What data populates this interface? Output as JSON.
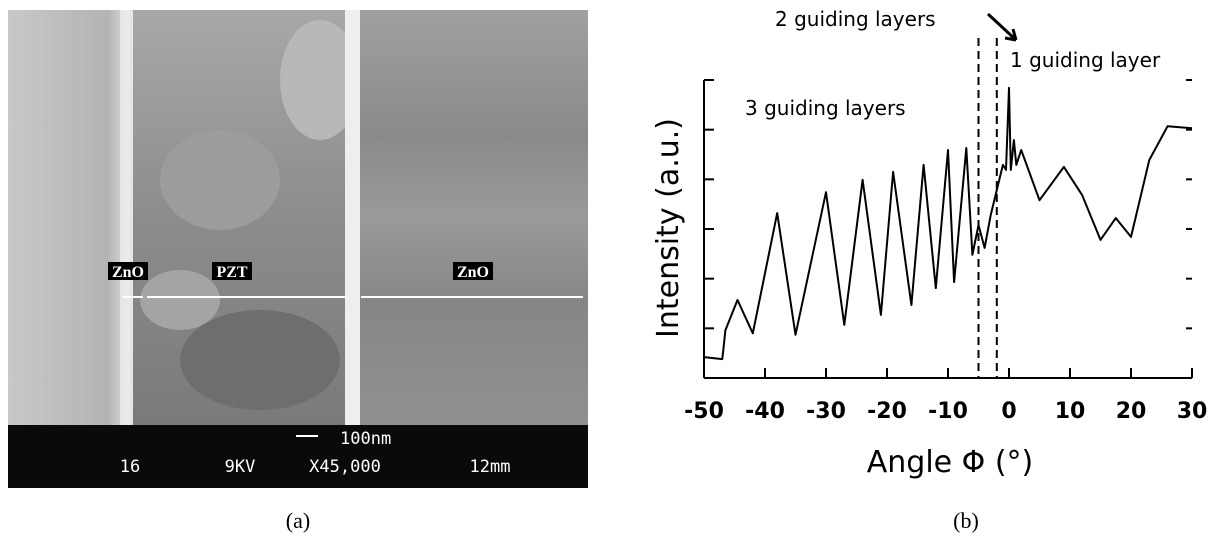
{
  "panel_a": {
    "labels": [
      "ZnO",
      "PZT",
      "ZnO"
    ],
    "scale_bar": "100nm",
    "info": [
      "16",
      "9KV",
      "X45,000",
      "12mm"
    ],
    "caption": "(a)"
  },
  "chart_data": {
    "type": "line",
    "x_label": "Angle Φ (°)",
    "y_label": "Intensity (a.u.)",
    "annotations": [
      "2 guiding layers",
      "1 guiding layer",
      "3 guiding layers"
    ],
    "xlim": [
      -50,
      30
    ],
    "xticks": [
      -50,
      -40,
      -30,
      -20,
      -10,
      0,
      10,
      20,
      30
    ],
    "ylim": [
      0,
      6
    ],
    "yticks": [
      0,
      1,
      2,
      3,
      4,
      5,
      6
    ],
    "vlines": [
      -5,
      -2
    ],
    "x": [
      -50,
      -47,
      -46.5,
      -44.5,
      -42,
      -38,
      -35,
      -30,
      -27,
      -24,
      -21,
      -19,
      -16,
      -14,
      -12,
      -10,
      -9,
      -7,
      -6,
      -5,
      -4,
      -3,
      -1,
      -0.5,
      0,
      0.3,
      0.8,
      1.2,
      2,
      5,
      9,
      12,
      15,
      17.5,
      20,
      23,
      26,
      30
    ],
    "series": [
      {
        "color": "#000000",
        "values": [
          0.42,
          0.38,
          0.96,
          1.57,
          0.9,
          3.32,
          0.87,
          3.74,
          1.07,
          3.99,
          1.27,
          4.15,
          1.47,
          4.29,
          1.81,
          4.59,
          1.93,
          4.63,
          2.48,
          3.08,
          2.62,
          3.28,
          4.29,
          4.19,
          5.84,
          4.19,
          4.79,
          4.29,
          4.59,
          3.58,
          4.25,
          3.68,
          2.78,
          3.22,
          2.84,
          4.39,
          5.07,
          5.03
        ]
      }
    ],
    "caption": "(b)"
  }
}
